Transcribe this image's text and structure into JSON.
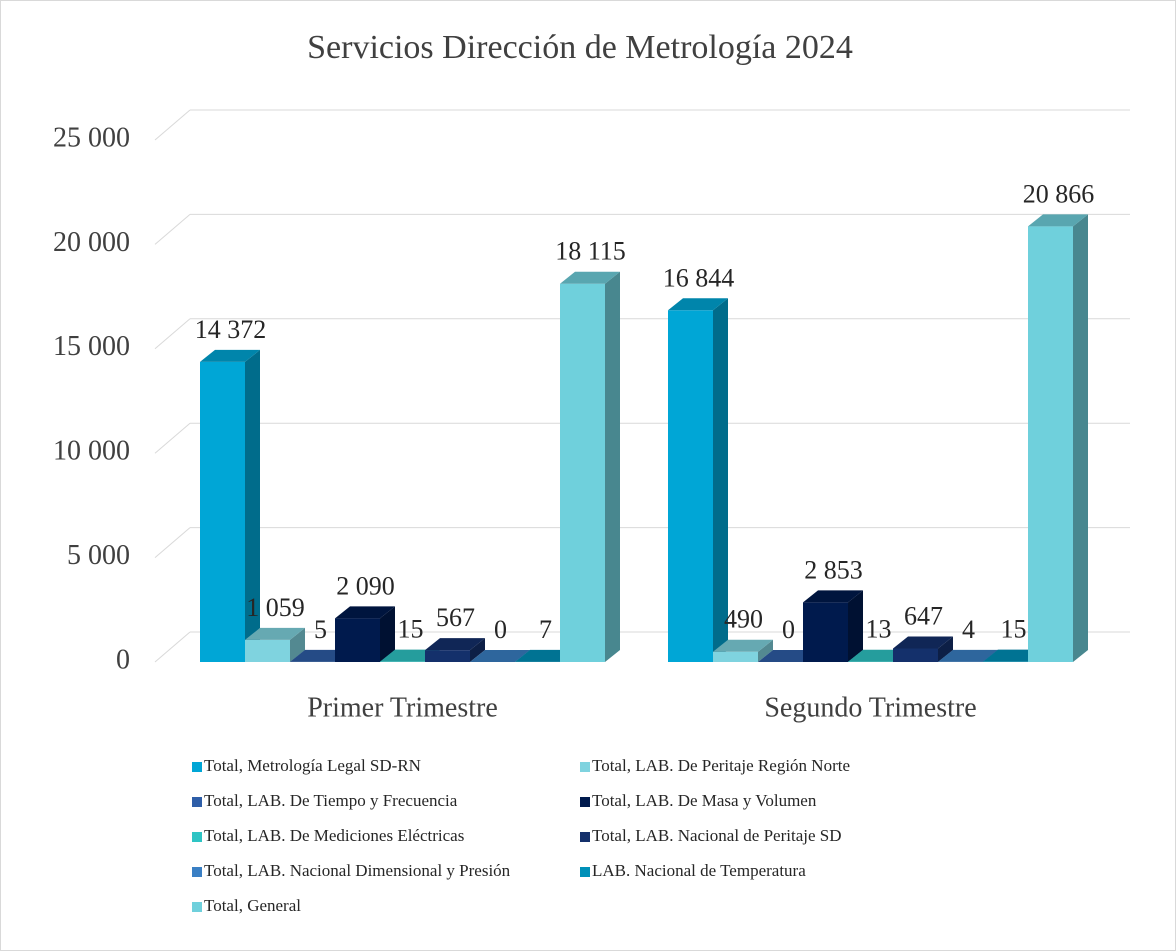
{
  "chart_data": {
    "type": "bar3d",
    "title": "Servicios Dirección de Metrología 2024",
    "categories": [
      "Primer Trimestre",
      "Segundo Trimestre"
    ],
    "ylim": [
      0,
      25000
    ],
    "yticks": [
      0,
      {
        "value": 5000,
        "label": "5 000"
      },
      {
        "value": 10000,
        "label": "10 000"
      },
      {
        "value": 15000,
        "label": "15 000"
      },
      {
        "value": 20000,
        "label": "20 000"
      },
      {
        "value": 25000,
        "label": "25 000"
      }
    ],
    "grid": true,
    "legend": "bottom",
    "series": [
      {
        "name": "Total, Metrología Legal SD-RN",
        "color": "#00a6d6",
        "values": [
          14372,
          16844
        ],
        "value_labels": [
          "14 372",
          "16 844"
        ]
      },
      {
        "name": "Total, LAB. De Peritaje Región Norte",
        "color": "#7fd3df",
        "values": [
          1059,
          490
        ],
        "value_labels": [
          "1 059",
          "490"
        ]
      },
      {
        "name": "Total, LAB. De Tiempo y Frecuencia",
        "color": "#2e5ea8",
        "values": [
          5,
          0
        ]
      },
      {
        "name": "Total, LAB. De Masa y Volumen",
        "color": "#001a4d",
        "values": [
          2090,
          2853
        ],
        "value_labels": [
          "2 090",
          "2 853"
        ]
      },
      {
        "name": "Total, LAB. De Mediciones Eléctricas",
        "color": "#2ec4c4",
        "values": [
          15,
          13
        ]
      },
      {
        "name": "Total, LAB. Nacional de Peritaje SD",
        "color": "#14306b",
        "values": [
          567,
          647
        ]
      },
      {
        "name": "Total, LAB. Nacional Dimensional y Presión",
        "color": "#3a7fc4",
        "values": [
          0,
          4
        ]
      },
      {
        "name": "LAB. Nacional de Temperatura",
        "color": "#0090b8",
        "values": [
          7,
          15
        ]
      },
      {
        "name": "Total, General",
        "color": "#6fd0dc",
        "values": [
          18115,
          20866
        ],
        "value_labels": [
          "18 115",
          "20 866"
        ]
      }
    ]
  }
}
